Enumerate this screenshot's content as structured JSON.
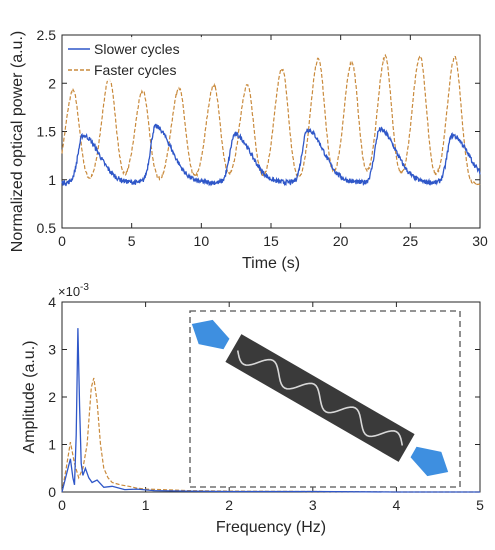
{
  "colors": {
    "slower": "#2f57c8",
    "faster": "#c98a3c",
    "inset_box": "#555555",
    "rod": "#3a3a3a",
    "arrow": "#3e8fe0",
    "axis": "#262626"
  },
  "chart_data": [
    {
      "type": "line",
      "xlabel": "Time (s)",
      "ylabel": "Normalized optical power (a.u.)",
      "xlim": [
        0,
        30
      ],
      "ylim": [
        0.5,
        2.5
      ],
      "xticks": [
        "0",
        "5",
        "10",
        "15",
        "20",
        "25",
        "30"
      ],
      "yticks": [
        "0.5",
        "1",
        "1.5",
        "2",
        "2.5"
      ],
      "legend": {
        "placement": "top-left",
        "entries": [
          "Slower cycles",
          "Faster cycles"
        ]
      },
      "grid": false,
      "series": [
        {
          "name": "Slower cycles",
          "style": "solid",
          "period": 5.2,
          "phase": 1.5,
          "baseline": 0.97,
          "peak_times": [
            1.5,
            6.7,
            12.4,
            17.6,
            22.8,
            28.0
          ],
          "peak_values": [
            1.46,
            1.55,
            1.47,
            1.52,
            1.52,
            1.46
          ]
        },
        {
          "name": "Faster cycles",
          "style": "dashed",
          "period": 2.53,
          "phase": 0.8,
          "baseline": 0.95,
          "peak_times": [
            0.8,
            3.4,
            5.8,
            8.4,
            10.9,
            13.3,
            15.8,
            18.4,
            20.8,
            23.2,
            25.7,
            28.2
          ],
          "peak_values": [
            1.92,
            2.05,
            1.92,
            1.95,
            1.98,
            1.98,
            2.15,
            2.25,
            2.22,
            2.28,
            2.28,
            2.27
          ]
        }
      ]
    },
    {
      "type": "line",
      "xlabel": "Frequency (Hz)",
      "ylabel": "Amplitude (a.u.)",
      "exponent_label": "×10",
      "exponent_power": "-3",
      "xlim": [
        0,
        5
      ],
      "ylim": [
        0,
        4
      ],
      "xticks": [
        "0",
        "1",
        "2",
        "3",
        "4",
        "5"
      ],
      "yticks": [
        "0",
        "1",
        "2",
        "3",
        "4"
      ],
      "grid": false,
      "series": [
        {
          "name": "Slower cycles",
          "style": "solid",
          "x": [
            0.0,
            0.05,
            0.1,
            0.13,
            0.15,
            0.17,
            0.19,
            0.21,
            0.23,
            0.25,
            0.28,
            0.32,
            0.36,
            0.42,
            0.5,
            0.6,
            0.75,
            0.9,
            1.1,
            1.5,
            2.0,
            3.0,
            4.0,
            5.0
          ],
          "y": [
            0.0,
            0.35,
            0.7,
            0.3,
            0.15,
            1.2,
            3.45,
            1.8,
            0.6,
            0.35,
            0.5,
            0.3,
            0.2,
            0.25,
            0.1,
            0.12,
            0.05,
            0.06,
            0.03,
            0.02,
            0.01,
            0.01,
            0.0,
            0.0
          ]
        },
        {
          "name": "Faster cycles",
          "style": "dashed",
          "x": [
            0.0,
            0.05,
            0.1,
            0.15,
            0.2,
            0.25,
            0.3,
            0.35,
            0.38,
            0.42,
            0.46,
            0.5,
            0.55,
            0.6,
            0.7,
            0.8,
            0.9,
            1.0,
            1.2,
            1.5,
            2.0,
            3.0,
            4.0,
            5.0
          ],
          "y": [
            0.0,
            0.5,
            1.05,
            0.6,
            0.3,
            0.5,
            1.0,
            2.2,
            2.4,
            1.9,
            1.0,
            0.5,
            0.3,
            0.2,
            0.15,
            0.12,
            0.08,
            0.06,
            0.05,
            0.03,
            0.02,
            0.01,
            0.0,
            0.0
          ]
        }
      ]
    }
  ]
}
